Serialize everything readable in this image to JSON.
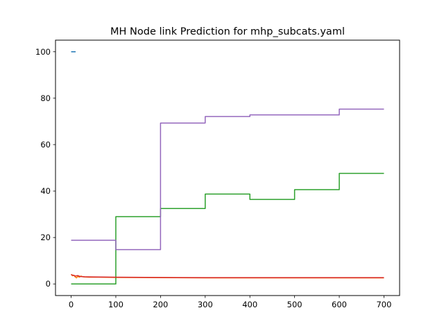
{
  "chart_data": {
    "type": "line",
    "title": "MH Node link Prediction for mhp_subcats.yaml",
    "xlabel": "",
    "ylabel": "",
    "xlim": [
      -35,
      735
    ],
    "ylim": [
      -5,
      105
    ],
    "xticks": [
      0,
      100,
      200,
      300,
      400,
      500,
      600,
      700
    ],
    "yticks": [
      0,
      20,
      40,
      60,
      80,
      100
    ],
    "grid": false,
    "legend": null,
    "series": [
      {
        "color": "#1f77b4",
        "x": [
          0,
          10
        ],
        "y": [
          100,
          100
        ]
      },
      {
        "color": "#ff7f0e",
        "x": [
          0,
          3,
          6,
          9,
          12,
          15,
          18,
          22,
          26,
          30,
          40,
          60,
          100,
          200,
          300,
          400,
          500,
          600,
          700
        ],
        "y": [
          4.2,
          3.5,
          3.8,
          3.0,
          2.6,
          3.3,
          2.9,
          3.4,
          3.1,
          3.0,
          2.9,
          2.9,
          2.8,
          2.7,
          2.6,
          2.6,
          2.6,
          2.6,
          2.6
        ]
      },
      {
        "color": "#2ca02c",
        "x": [
          0,
          100,
          100,
          200,
          200,
          300,
          300,
          400,
          400,
          500,
          500,
          600,
          600,
          700
        ],
        "y": [
          0,
          0,
          29,
          29,
          32.5,
          32.5,
          38.7,
          38.7,
          36.4,
          36.4,
          40.6,
          40.6,
          47.6,
          47.6
        ]
      },
      {
        "color": "#d62728",
        "x": [
          0,
          5,
          10,
          15,
          20,
          30,
          50,
          100,
          200,
          300,
          400,
          500,
          600,
          700
        ],
        "y": [
          4.0,
          3.7,
          3.4,
          3.6,
          3.2,
          3.1,
          3.0,
          2.9,
          2.8,
          2.7,
          2.7,
          2.7,
          2.7,
          2.7
        ]
      },
      {
        "color": "#9467bd",
        "x": [
          0,
          100,
          100,
          200,
          200,
          300,
          300,
          400,
          400,
          600,
          600,
          700
        ],
        "y": [
          18.8,
          18.8,
          14.8,
          14.8,
          69.3,
          69.3,
          72.1,
          72.1,
          72.8,
          72.8,
          75.3,
          75.3
        ]
      }
    ]
  }
}
